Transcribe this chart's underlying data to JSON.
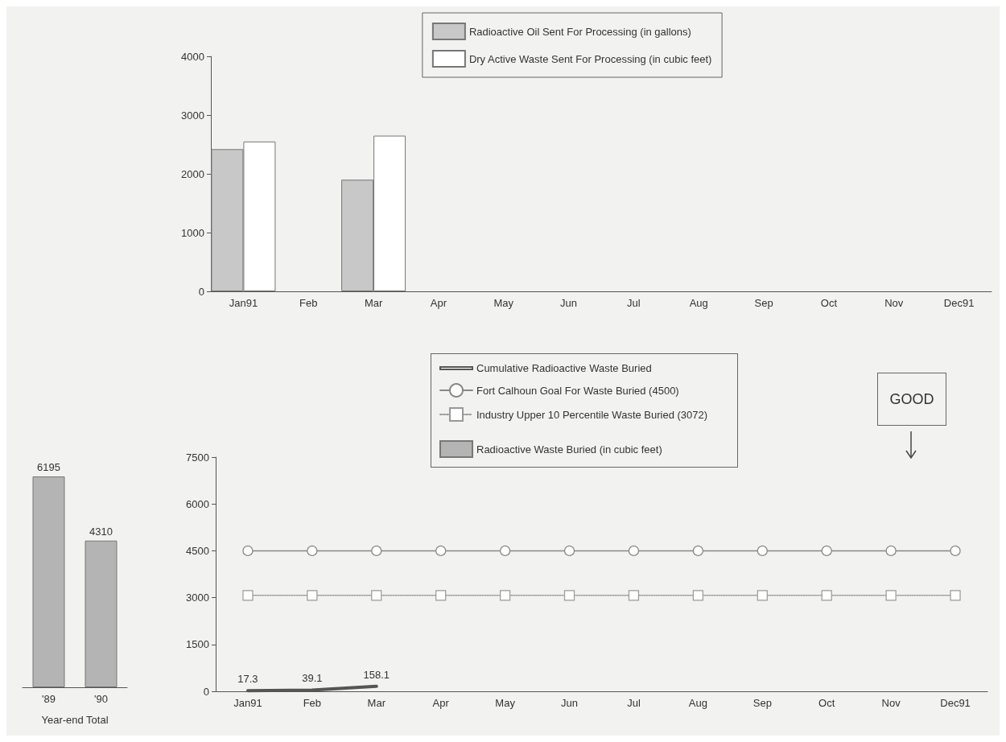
{
  "chart_data": [
    {
      "type": "bar",
      "categories": [
        "Jan91",
        "Feb",
        "Mar",
        "Apr",
        "May",
        "Jun",
        "Jul",
        "Aug",
        "Sep",
        "Oct",
        "Nov",
        "Dec91"
      ],
      "series": [
        {
          "name": "Radioactive Oil Sent For Processing (in gallons)",
          "color": "#c8c8c8",
          "values": [
            2420,
            null,
            1900,
            null,
            null,
            null,
            null,
            null,
            null,
            null,
            null,
            null
          ]
        },
        {
          "name": "Dry Active Waste Sent For Processing (in cubic feet)",
          "color": "#ffffff",
          "values": [
            2550,
            null,
            2650,
            null,
            null,
            null,
            null,
            null,
            null,
            null,
            null,
            null
          ]
        }
      ],
      "ylim": [
        0,
        4000
      ],
      "yticks": [
        0,
        1000,
        2000,
        3000,
        4000
      ],
      "grid": false,
      "legend": "top"
    },
    {
      "type": "bar",
      "categories": [
        "'89",
        "'90"
      ],
      "xlabel": "Year-end Total",
      "series": [
        {
          "name": "Radioactive Waste Buried (in cubic feet)",
          "color": "#b4b4b4",
          "values": [
            6195,
            4310
          ]
        }
      ],
      "data_labels": true,
      "tick_labels": "x"
    },
    {
      "type": "line",
      "categories": [
        "Jan91",
        "Feb",
        "Mar",
        "Apr",
        "May",
        "Jun",
        "Jul",
        "Aug",
        "Sep",
        "Oct",
        "Nov",
        "Dec91"
      ],
      "series": [
        {
          "name": "Cumulative Radioactive Waste Buried",
          "color": "#555555",
          "marker": "none",
          "line_style": "solid",
          "values": [
            17.3,
            39.1,
            158.1,
            null,
            null,
            null,
            null,
            null,
            null,
            null,
            null,
            null
          ],
          "value_labels": [
            "17.3",
            "39.1",
            "158.1",
            null,
            null,
            null,
            null,
            null,
            null,
            null,
            null,
            null
          ]
        },
        {
          "name": "Fort Calhoun Goal For Waste Buried (4500)",
          "color": "#888888",
          "marker": "circle",
          "line_style": "solid",
          "values": [
            4500,
            4500,
            4500,
            4500,
            4500,
            4500,
            4500,
            4500,
            4500,
            4500,
            4500,
            4500
          ]
        },
        {
          "name": "Industry Upper 10 Percentile Waste Buried (3072)",
          "color": "#999999",
          "marker": "square",
          "line_style": "dotted",
          "values": [
            3072,
            3072,
            3072,
            3072,
            3072,
            3072,
            3072,
            3072,
            3072,
            3072,
            3072,
            3072
          ]
        }
      ],
      "ylim": [
        0,
        7500
      ],
      "yticks": [
        0,
        1500,
        3000,
        4500,
        6000,
        7500
      ],
      "grid": false,
      "legend": "top",
      "annotations": [
        "GOOD"
      ]
    }
  ]
}
